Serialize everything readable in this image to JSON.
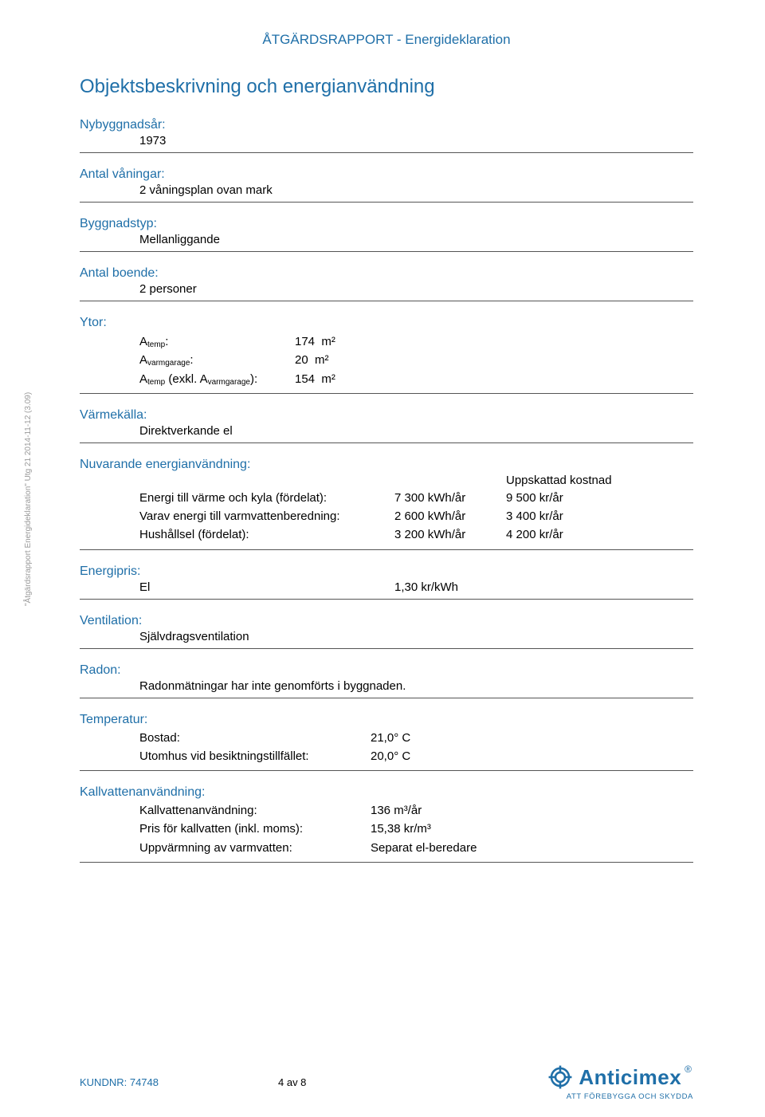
{
  "brand_color": "#1f6fa8",
  "header": {
    "title": "ÅTGÄRDSRAPPORT - Energideklaration"
  },
  "h1": "Objektsbeskrivning och energianvändning",
  "nybyggnad": {
    "label": "Nybyggnadsår:",
    "value": "1973"
  },
  "vaningar": {
    "label": "Antal våningar:",
    "value": "2 våningsplan ovan mark"
  },
  "byggnadstyp": {
    "label": "Byggnadstyp:",
    "value": "Mellanliggande"
  },
  "boende": {
    "label": "Antal boende:",
    "value": "2 personer"
  },
  "ytor": {
    "label": "Ytor:",
    "rows": [
      {
        "k_html": "A<sub>temp</sub>:",
        "v": "174  m²"
      },
      {
        "k_html": "A<sub>varmgarage</sub>:",
        "v": "20  m²"
      },
      {
        "k_html": "A<sub>temp</sub> (exkl. A<sub>varmgarage</sub>):",
        "v": "154  m²"
      }
    ]
  },
  "varmekalla": {
    "label": "Värmekälla:",
    "value": "Direktverkande el"
  },
  "nuvarande": {
    "label": "Nuvarande energianvändning:",
    "cost_head": "Uppskattad kostnad",
    "rows": [
      {
        "c1": "Energi till värme och kyla (fördelat):",
        "c2": "7 300 kWh/år",
        "c3": "9 500 kr/år"
      },
      {
        "c1": "Varav energi till varmvattenberedning:",
        "c2": "2 600 kWh/år",
        "c3": "3 400 kr/år"
      },
      {
        "c1": "Hushållsel (fördelat):",
        "c2": "3 200 kWh/år",
        "c3": "4 200 kr/år"
      }
    ]
  },
  "energipris": {
    "label": "Energipris:",
    "k": "El",
    "v": "1,30 kr/kWh"
  },
  "ventilation": {
    "label": "Ventilation:",
    "value": "Självdragsventilation"
  },
  "radon": {
    "label": "Radon:",
    "value": "Radonmätningar har inte genomförts i byggnaden."
  },
  "temperatur": {
    "label": "Temperatur:",
    "rows": [
      {
        "k": "Bostad:",
        "v": "21,0° C"
      },
      {
        "k": "Utomhus vid besiktningstillfället:",
        "v": "20,0° C"
      }
    ]
  },
  "kallvatten": {
    "label": "Kallvattenanvändning:",
    "rows": [
      {
        "k": "Kallvattenanvändning:",
        "v": "136 m³/år"
      },
      {
        "k": "Pris för kallvatten (inkl. moms):",
        "v": "15,38 kr/m³"
      },
      {
        "k": "Uppvärmning av varmvatten:",
        "v": "Separat el-beredare"
      }
    ]
  },
  "footer": {
    "kundnr": "KUNDNR: 74748",
    "page": "4 av 8",
    "logo_text": "Anticimex",
    "logo_tag": "ATT FÖREBYGGA OCH SKYDDA"
  },
  "side_note": "\"Åtgärdsrapport Energideklaration\" Utg 21 2014-11-12 (3.09)"
}
